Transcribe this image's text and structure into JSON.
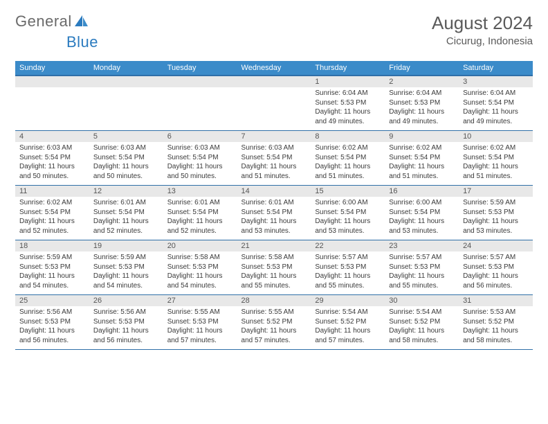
{
  "brand": {
    "word1": "General",
    "word2": "Blue"
  },
  "title": {
    "month_year": "August 2024",
    "location": "Cicurug, Indonesia"
  },
  "colors": {
    "header_bg": "#3b8bc9",
    "header_text": "#ffffff",
    "daynum_bg": "#e8e8e8",
    "rule": "#2f6fa8",
    "brand_gray": "#6a6a6a",
    "brand_blue": "#2b7bbf",
    "text": "#3a3a3a",
    "title_color": "#5a5a5a"
  },
  "weekdays": [
    "Sunday",
    "Monday",
    "Tuesday",
    "Wednesday",
    "Thursday",
    "Friday",
    "Saturday"
  ],
  "weeks": [
    [
      {
        "n": "",
        "sr": "",
        "ss": "",
        "dl": ""
      },
      {
        "n": "",
        "sr": "",
        "ss": "",
        "dl": ""
      },
      {
        "n": "",
        "sr": "",
        "ss": "",
        "dl": ""
      },
      {
        "n": "",
        "sr": "",
        "ss": "",
        "dl": ""
      },
      {
        "n": "1",
        "sr": "Sunrise: 6:04 AM",
        "ss": "Sunset: 5:53 PM",
        "dl": "Daylight: 11 hours and 49 minutes."
      },
      {
        "n": "2",
        "sr": "Sunrise: 6:04 AM",
        "ss": "Sunset: 5:53 PM",
        "dl": "Daylight: 11 hours and 49 minutes."
      },
      {
        "n": "3",
        "sr": "Sunrise: 6:04 AM",
        "ss": "Sunset: 5:54 PM",
        "dl": "Daylight: 11 hours and 49 minutes."
      }
    ],
    [
      {
        "n": "4",
        "sr": "Sunrise: 6:03 AM",
        "ss": "Sunset: 5:54 PM",
        "dl": "Daylight: 11 hours and 50 minutes."
      },
      {
        "n": "5",
        "sr": "Sunrise: 6:03 AM",
        "ss": "Sunset: 5:54 PM",
        "dl": "Daylight: 11 hours and 50 minutes."
      },
      {
        "n": "6",
        "sr": "Sunrise: 6:03 AM",
        "ss": "Sunset: 5:54 PM",
        "dl": "Daylight: 11 hours and 50 minutes."
      },
      {
        "n": "7",
        "sr": "Sunrise: 6:03 AM",
        "ss": "Sunset: 5:54 PM",
        "dl": "Daylight: 11 hours and 51 minutes."
      },
      {
        "n": "8",
        "sr": "Sunrise: 6:02 AM",
        "ss": "Sunset: 5:54 PM",
        "dl": "Daylight: 11 hours and 51 minutes."
      },
      {
        "n": "9",
        "sr": "Sunrise: 6:02 AM",
        "ss": "Sunset: 5:54 PM",
        "dl": "Daylight: 11 hours and 51 minutes."
      },
      {
        "n": "10",
        "sr": "Sunrise: 6:02 AM",
        "ss": "Sunset: 5:54 PM",
        "dl": "Daylight: 11 hours and 51 minutes."
      }
    ],
    [
      {
        "n": "11",
        "sr": "Sunrise: 6:02 AM",
        "ss": "Sunset: 5:54 PM",
        "dl": "Daylight: 11 hours and 52 minutes."
      },
      {
        "n": "12",
        "sr": "Sunrise: 6:01 AM",
        "ss": "Sunset: 5:54 PM",
        "dl": "Daylight: 11 hours and 52 minutes."
      },
      {
        "n": "13",
        "sr": "Sunrise: 6:01 AM",
        "ss": "Sunset: 5:54 PM",
        "dl": "Daylight: 11 hours and 52 minutes."
      },
      {
        "n": "14",
        "sr": "Sunrise: 6:01 AM",
        "ss": "Sunset: 5:54 PM",
        "dl": "Daylight: 11 hours and 53 minutes."
      },
      {
        "n": "15",
        "sr": "Sunrise: 6:00 AM",
        "ss": "Sunset: 5:54 PM",
        "dl": "Daylight: 11 hours and 53 minutes."
      },
      {
        "n": "16",
        "sr": "Sunrise: 6:00 AM",
        "ss": "Sunset: 5:54 PM",
        "dl": "Daylight: 11 hours and 53 minutes."
      },
      {
        "n": "17",
        "sr": "Sunrise: 5:59 AM",
        "ss": "Sunset: 5:53 PM",
        "dl": "Daylight: 11 hours and 53 minutes."
      }
    ],
    [
      {
        "n": "18",
        "sr": "Sunrise: 5:59 AM",
        "ss": "Sunset: 5:53 PM",
        "dl": "Daylight: 11 hours and 54 minutes."
      },
      {
        "n": "19",
        "sr": "Sunrise: 5:59 AM",
        "ss": "Sunset: 5:53 PM",
        "dl": "Daylight: 11 hours and 54 minutes."
      },
      {
        "n": "20",
        "sr": "Sunrise: 5:58 AM",
        "ss": "Sunset: 5:53 PM",
        "dl": "Daylight: 11 hours and 54 minutes."
      },
      {
        "n": "21",
        "sr": "Sunrise: 5:58 AM",
        "ss": "Sunset: 5:53 PM",
        "dl": "Daylight: 11 hours and 55 minutes."
      },
      {
        "n": "22",
        "sr": "Sunrise: 5:57 AM",
        "ss": "Sunset: 5:53 PM",
        "dl": "Daylight: 11 hours and 55 minutes."
      },
      {
        "n": "23",
        "sr": "Sunrise: 5:57 AM",
        "ss": "Sunset: 5:53 PM",
        "dl": "Daylight: 11 hours and 55 minutes."
      },
      {
        "n": "24",
        "sr": "Sunrise: 5:57 AM",
        "ss": "Sunset: 5:53 PM",
        "dl": "Daylight: 11 hours and 56 minutes."
      }
    ],
    [
      {
        "n": "25",
        "sr": "Sunrise: 5:56 AM",
        "ss": "Sunset: 5:53 PM",
        "dl": "Daylight: 11 hours and 56 minutes."
      },
      {
        "n": "26",
        "sr": "Sunrise: 5:56 AM",
        "ss": "Sunset: 5:53 PM",
        "dl": "Daylight: 11 hours and 56 minutes."
      },
      {
        "n": "27",
        "sr": "Sunrise: 5:55 AM",
        "ss": "Sunset: 5:53 PM",
        "dl": "Daylight: 11 hours and 57 minutes."
      },
      {
        "n": "28",
        "sr": "Sunrise: 5:55 AM",
        "ss": "Sunset: 5:52 PM",
        "dl": "Daylight: 11 hours and 57 minutes."
      },
      {
        "n": "29",
        "sr": "Sunrise: 5:54 AM",
        "ss": "Sunset: 5:52 PM",
        "dl": "Daylight: 11 hours and 57 minutes."
      },
      {
        "n": "30",
        "sr": "Sunrise: 5:54 AM",
        "ss": "Sunset: 5:52 PM",
        "dl": "Daylight: 11 hours and 58 minutes."
      },
      {
        "n": "31",
        "sr": "Sunrise: 5:53 AM",
        "ss": "Sunset: 5:52 PM",
        "dl": "Daylight: 11 hours and 58 minutes."
      }
    ]
  ]
}
